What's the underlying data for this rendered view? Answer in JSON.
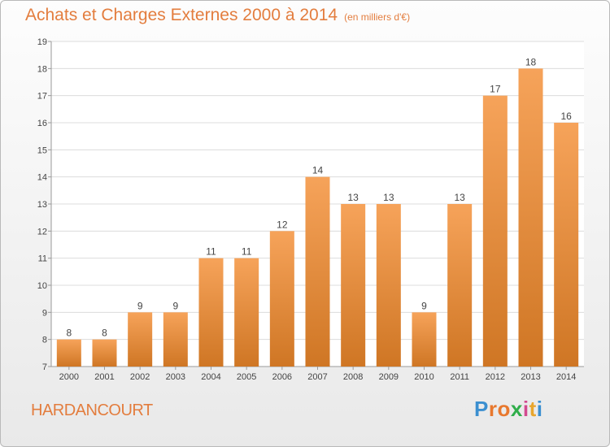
{
  "title": "Achats et Charges Externes 2000 à 2014",
  "unit": "(en milliers d'€)",
  "location": "HARDANCOURT",
  "brand": {
    "name": "Proxiti",
    "letters": [
      "P",
      "r",
      "o",
      "x",
      "i",
      "t",
      "i"
    ],
    "colors": [
      "#3b8fd0",
      "#e8782e",
      "#e8782e",
      "#2fae4a",
      "#d24a8f",
      "#e8a62e",
      "#3b8fd0"
    ]
  },
  "colors": {
    "accent": "#e37d3e",
    "bar_light": "#f6a35a",
    "bar_dark": "#cf7624"
  },
  "chart_data": {
    "type": "bar",
    "categories": [
      "2000",
      "2001",
      "2002",
      "2003",
      "2004",
      "2005",
      "2006",
      "2007",
      "2008",
      "2009",
      "2010",
      "2011",
      "2012",
      "2013",
      "2014"
    ],
    "values": [
      8,
      8,
      9,
      9,
      11,
      11,
      12,
      14,
      13,
      13,
      9,
      13,
      17,
      18,
      16
    ],
    "value_labels": [
      "8",
      "8",
      "9",
      "9",
      "11",
      "11",
      "12",
      "14",
      "13",
      "13",
      "9",
      "13",
      "17",
      "18",
      "16"
    ],
    "yticks": [
      7,
      8,
      9,
      10,
      11,
      12,
      13,
      14,
      15,
      16,
      17,
      18,
      19
    ],
    "ylim": [
      7,
      19
    ],
    "grid": true,
    "xlabel": "",
    "ylabel": ""
  }
}
